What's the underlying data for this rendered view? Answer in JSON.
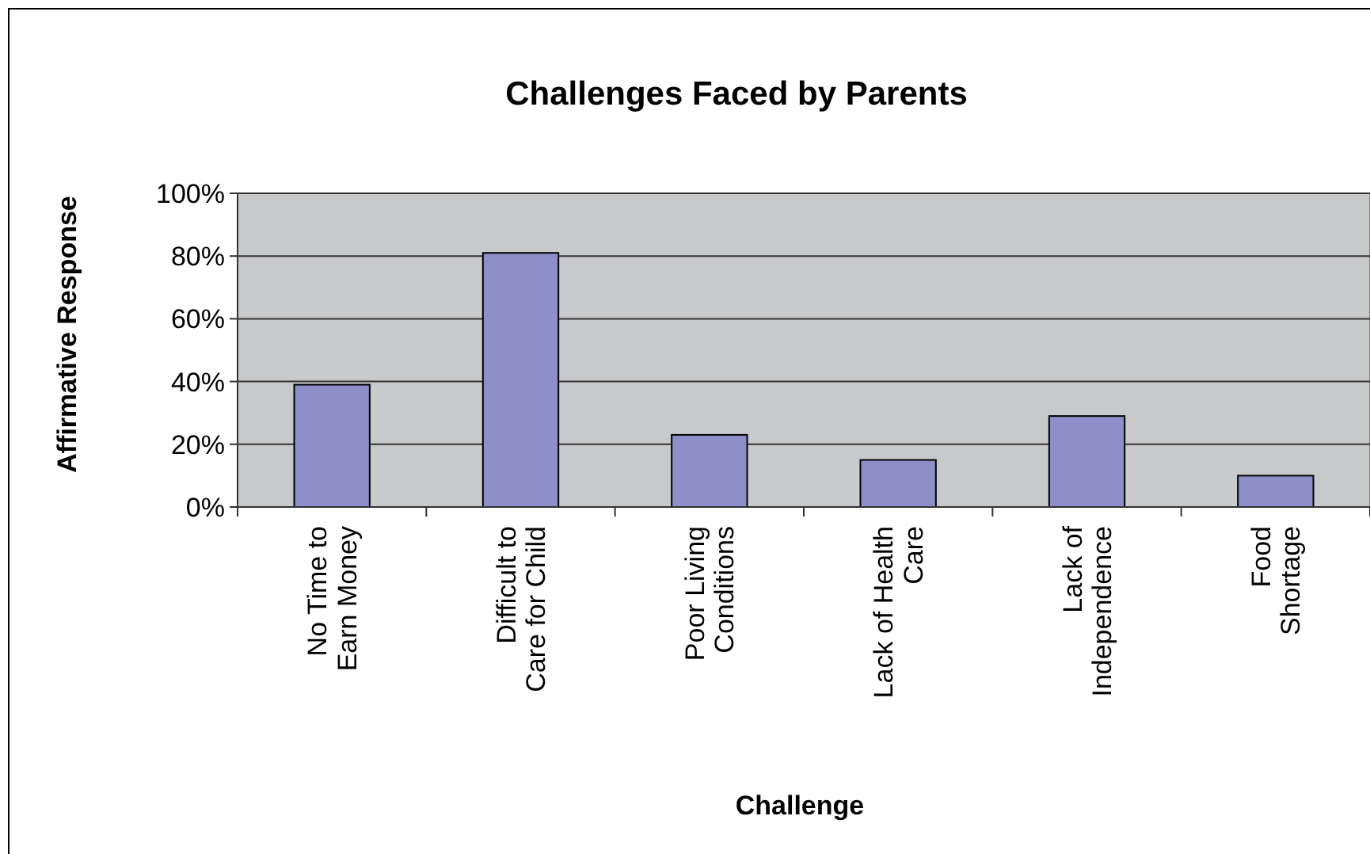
{
  "chart_data": {
    "type": "bar",
    "title": "Challenges Faced by Parents",
    "xlabel": "Challenge",
    "ylabel": "Affirmative Response",
    "categories": [
      "No Time to\nEarn Money",
      "Difficult to\nCare for Child",
      "Poor Living\nConditions",
      "Lack of Health\nCare",
      "Lack of\nIndependence",
      "Food\nShortage"
    ],
    "values": [
      39,
      81,
      23,
      15,
      29,
      10
    ],
    "color": "#8e8ec8",
    "ylim": [
      0,
      100
    ],
    "yticks": [
      {
        "value": 0,
        "label": "0%"
      },
      {
        "value": 20,
        "label": "20%"
      },
      {
        "value": 40,
        "label": "40%"
      },
      {
        "value": 60,
        "label": "60%"
      },
      {
        "value": 80,
        "label": "80%"
      },
      {
        "value": 100,
        "label": "100%"
      }
    ],
    "grid": "y"
  }
}
